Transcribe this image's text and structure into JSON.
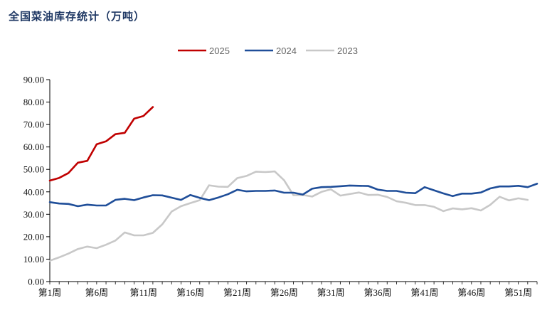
{
  "chart_data": {
    "type": "line",
    "title": "全国菜油库存统计（万吨）",
    "xlabel": "",
    "ylabel": "",
    "ylim": [
      0,
      90
    ],
    "y_ticks": [
      "0.00",
      "10.00",
      "20.00",
      "30.00",
      "40.00",
      "50.00",
      "60.00",
      "70.00",
      "80.00",
      "90.00"
    ],
    "x_tick_labels": [
      "第1周",
      "第6周",
      "第11周",
      "第16周",
      "第21周",
      "第26周",
      "第31周",
      "第36周",
      "第41周",
      "第46周",
      "第51周"
    ],
    "x_tick_weeks": [
      1,
      6,
      11,
      16,
      21,
      26,
      31,
      36,
      41,
      46,
      51
    ],
    "x_range": [
      1,
      53
    ],
    "grid": false,
    "legend_position": "top",
    "series": [
      {
        "name": "2025",
        "color": "#c00000",
        "values": [
          45.0,
          46.2,
          48.4,
          53.0,
          53.8,
          61.2,
          62.5,
          65.7,
          66.3,
          72.6,
          73.8,
          77.8
        ]
      },
      {
        "name": "2024",
        "color": "#1f4e99",
        "values": [
          35.4,
          34.8,
          34.6,
          33.6,
          34.3,
          33.9,
          33.9,
          36.4,
          36.9,
          36.3,
          37.5,
          38.5,
          38.4,
          37.4,
          36.4,
          38.6,
          37.3,
          36.3,
          37.5,
          38.9,
          40.9,
          40.2,
          40.4,
          40.4,
          40.6,
          39.6,
          39.6,
          38.8,
          41.4,
          42.1,
          42.2,
          42.5,
          42.8,
          42.7,
          42.6,
          41.0,
          40.4,
          40.4,
          39.6,
          39.4,
          42.1,
          40.7,
          39.3,
          38.1,
          39.2,
          39.2,
          39.7,
          41.5,
          42.4,
          42.4,
          42.7,
          42.1,
          43.6
        ]
      },
      {
        "name": "2023",
        "color": "#c8c8c8",
        "values": [
          9.3,
          10.8,
          12.5,
          14.5,
          15.6,
          14.9,
          16.4,
          18.3,
          21.9,
          20.6,
          20.6,
          21.7,
          25.5,
          31.2,
          33.6,
          35.0,
          36.3,
          42.9,
          42.3,
          42.2,
          46.1,
          47.1,
          49.0,
          48.8,
          49.1,
          45.2,
          38.5,
          38.6,
          37.9,
          40.0,
          41.1,
          38.3,
          39.0,
          39.7,
          38.6,
          38.7,
          37.7,
          35.8,
          35.1,
          34.1,
          34.1,
          33.3,
          31.4,
          32.6,
          32.2,
          32.7,
          31.7,
          34.2,
          37.8,
          36.2,
          37.1,
          36.4
        ]
      }
    ]
  }
}
